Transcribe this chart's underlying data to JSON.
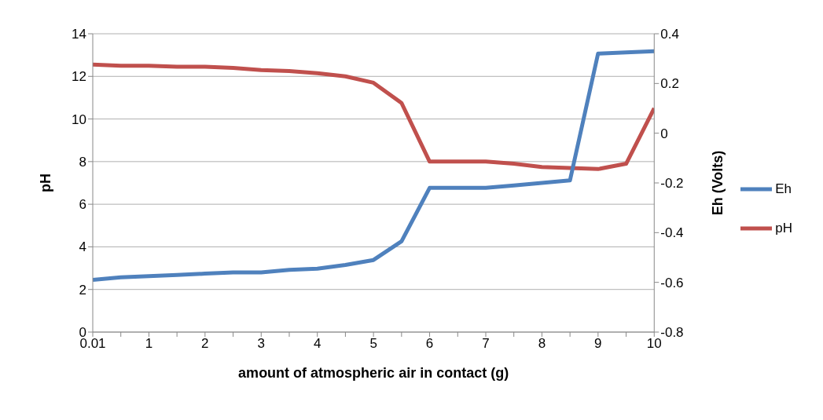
{
  "chart_data": {
    "type": "line",
    "xlabel": "amount of atmospheric air in contact (g)",
    "ylabel": "pH",
    "y2label": "Eh (Volts)",
    "categories": [
      "0.01",
      null,
      "1",
      null,
      "2",
      null,
      "3",
      null,
      "4",
      null,
      "5",
      null,
      "6",
      null,
      "7",
      null,
      "8",
      null,
      "9",
      null,
      "10"
    ],
    "series": [
      {
        "name": "pH",
        "color": "#c0504d",
        "values": [
          12.55,
          12.5,
          12.5,
          12.45,
          12.45,
          12.4,
          12.3,
          12.25,
          12.15,
          12.0,
          11.7,
          10.75,
          8.0,
          8.0,
          8.0,
          7.9,
          7.75,
          7.7,
          7.65,
          7.9,
          10.5
        ]
      },
      {
        "name": "Eh",
        "color": "#4f81bd",
        "axis": "y2",
        "values": [
          -0.59,
          -0.58,
          -0.575,
          -0.57,
          -0.565,
          -0.56,
          -0.56,
          -0.55,
          -0.545,
          -0.53,
          -0.51,
          -0.435,
          -0.22,
          -0.22,
          -0.22,
          -0.21,
          -0.2,
          -0.19,
          0.32,
          0.325,
          0.33
        ]
      }
    ],
    "ylim": [
      0,
      14
    ],
    "yticks": [
      0,
      2,
      4,
      6,
      8,
      10,
      12,
      14
    ],
    "y2lim": [
      -0.8,
      0.4
    ],
    "y2ticks": [
      -0.8,
      -0.6,
      -0.4,
      -0.2,
      0,
      0.2,
      0.4
    ],
    "grid": "y",
    "legend": "right",
    "marker": "none",
    "line_style": "solid"
  }
}
